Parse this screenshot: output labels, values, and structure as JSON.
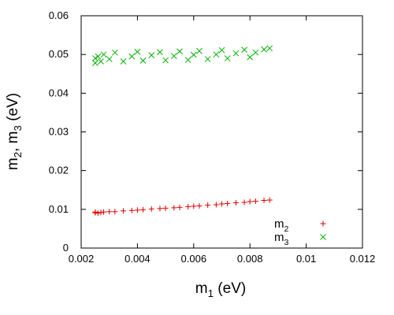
{
  "chart_data": {
    "type": "scatter",
    "title": "",
    "xlabel": {
      "base": "m",
      "sub": "1",
      "rest": " (eV)"
    },
    "ylabel": {
      "parts": [
        {
          "base": "m",
          "sub": "2"
        },
        {
          "text": ", "
        },
        {
          "base": "m",
          "sub": "3"
        },
        {
          "text": " (eV)"
        }
      ]
    },
    "xlim": [
      0.002,
      0.012
    ],
    "ylim": [
      0,
      0.06
    ],
    "xticks": [
      0.002,
      0.004,
      0.006,
      0.008,
      0.01,
      0.012
    ],
    "xtick_labels": [
      "0.002",
      "0.004",
      "0.006",
      "0.008",
      "0.01",
      "0.012"
    ],
    "yticks": [
      0,
      0.01,
      0.02,
      0.03,
      0.04,
      0.05,
      0.06
    ],
    "ytick_labels": [
      "0",
      "0.01",
      "0.02",
      "0.03",
      "0.04",
      "0.05",
      "0.06"
    ],
    "grid": false,
    "legend_position": "bottom-right",
    "series": [
      {
        "name": "m2",
        "label_base": "m",
        "label_sub": "2",
        "marker": "+",
        "color": "#e00000",
        "points": [
          [
            0.0025,
            0.0091
          ],
          [
            0.0025,
            0.0093
          ],
          [
            0.0026,
            0.009
          ],
          [
            0.0027,
            0.0092
          ],
          [
            0.0028,
            0.0093
          ],
          [
            0.003,
            0.0094
          ],
          [
            0.0032,
            0.0094
          ],
          [
            0.0035,
            0.0096
          ],
          [
            0.0038,
            0.0097
          ],
          [
            0.004,
            0.0098
          ],
          [
            0.0042,
            0.0099
          ],
          [
            0.0045,
            0.0101
          ],
          [
            0.0048,
            0.0102
          ],
          [
            0.005,
            0.0103
          ],
          [
            0.0053,
            0.0104
          ],
          [
            0.0055,
            0.0105
          ],
          [
            0.0058,
            0.0107
          ],
          [
            0.006,
            0.0108
          ],
          [
            0.0062,
            0.0109
          ],
          [
            0.0065,
            0.0111
          ],
          [
            0.0068,
            0.0112
          ],
          [
            0.007,
            0.0114
          ],
          [
            0.0072,
            0.0115
          ],
          [
            0.0075,
            0.0117
          ],
          [
            0.0078,
            0.0118
          ],
          [
            0.008,
            0.012
          ],
          [
            0.0082,
            0.0121
          ],
          [
            0.0085,
            0.0123
          ],
          [
            0.0087,
            0.0124
          ]
        ]
      },
      {
        "name": "m3",
        "label_base": "m",
        "label_sub": "3",
        "marker": "x",
        "color": "#00b000",
        "points": [
          [
            0.0025,
            0.0478
          ],
          [
            0.0025,
            0.049
          ],
          [
            0.0026,
            0.0495
          ],
          [
            0.0027,
            0.0482
          ],
          [
            0.0028,
            0.05
          ],
          [
            0.003,
            0.0488
          ],
          [
            0.0032,
            0.0505
          ],
          [
            0.0035,
            0.0482
          ],
          [
            0.0038,
            0.0495
          ],
          [
            0.004,
            0.0507
          ],
          [
            0.0042,
            0.0484
          ],
          [
            0.0045,
            0.0498
          ],
          [
            0.0048,
            0.0506
          ],
          [
            0.005,
            0.0485
          ],
          [
            0.0053,
            0.0496
          ],
          [
            0.0055,
            0.0508
          ],
          [
            0.0058,
            0.0486
          ],
          [
            0.006,
            0.0499
          ],
          [
            0.0062,
            0.0509
          ],
          [
            0.0065,
            0.0488
          ],
          [
            0.0068,
            0.05
          ],
          [
            0.007,
            0.0511
          ],
          [
            0.0072,
            0.049
          ],
          [
            0.0075,
            0.0503
          ],
          [
            0.0078,
            0.0512
          ],
          [
            0.008,
            0.0493
          ],
          [
            0.0082,
            0.0505
          ],
          [
            0.0085,
            0.0513
          ],
          [
            0.0087,
            0.0516
          ]
        ]
      }
    ]
  }
}
